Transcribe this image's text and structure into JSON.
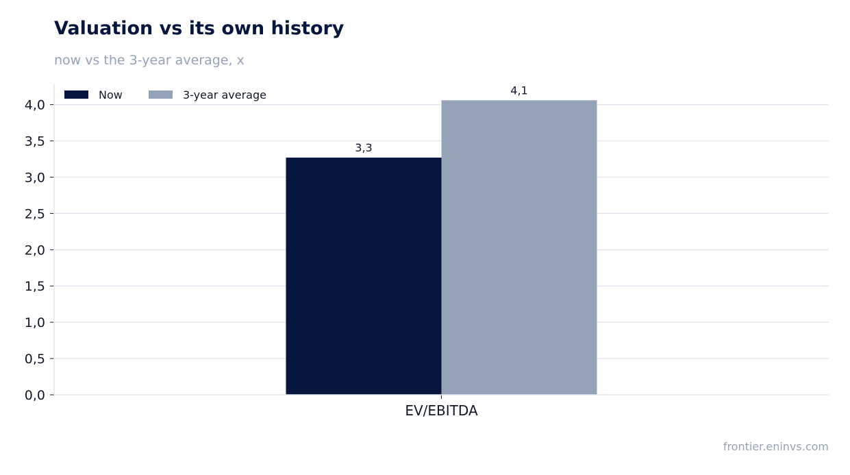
{
  "title": "Valuation vs its own history",
  "subtitle": "now vs the 3-year average, x",
  "source": "frontier.eninvs.com",
  "chart_data": {
    "type": "bar",
    "title": "Valuation vs its own history",
    "subtitle": "now vs the 3-year average, x",
    "categories": [
      "EV/EBITDA"
    ],
    "series": [
      {
        "name": "Now",
        "values": [
          3.27
        ],
        "label": "3,3",
        "color": "#06163f"
      },
      {
        "name": "3-year average",
        "values": [
          4.06
        ],
        "label": "4,1",
        "color": "#94a3b8"
      }
    ],
    "ylim": [
      0,
      4.28
    ],
    "yticks": [
      0,
      0.5,
      1.0,
      1.5,
      2.0,
      2.5,
      3.0,
      3.5,
      4.0
    ],
    "ytick_labels": [
      "0,0",
      "0,5",
      "1,0",
      "1,5",
      "2,0",
      "2,5",
      "3,0",
      "3,5",
      "4,0"
    ],
    "grid": true,
    "legend_position": "top-left",
    "xlabel": "",
    "ylabel": ""
  }
}
